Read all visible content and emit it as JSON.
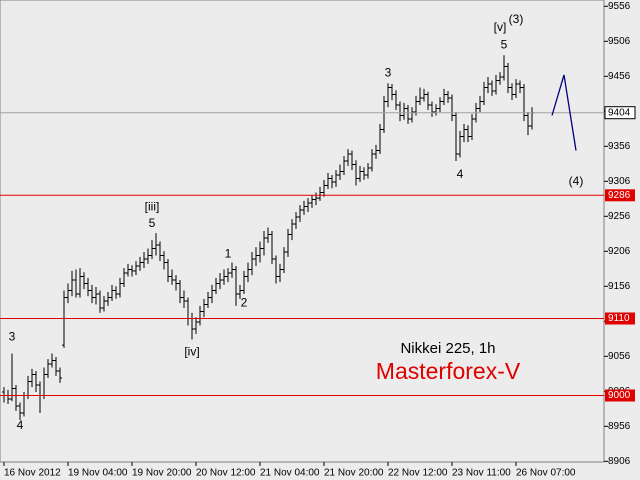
{
  "chart_data": {
    "type": "ohlc",
    "symbol": "Nikkei 225, 1h",
    "brand": "Masterforex-V",
    "bars": [
      [
        9005,
        9012,
        8990,
        9000
      ],
      [
        9000,
        9008,
        8988,
        8995
      ],
      [
        8995,
        9060,
        8992,
        9010
      ],
      [
        9010,
        9015,
        8978,
        8985
      ],
      [
        8985,
        8990,
        8965,
        8975
      ],
      [
        8975,
        9005,
        8970,
        9000
      ],
      [
        9000,
        9028,
        8995,
        9020
      ],
      [
        9020,
        9038,
        9012,
        9030
      ],
      [
        9030,
        9035,
        9005,
        9015
      ],
      [
        9015,
        9020,
        8975,
        9000
      ],
      [
        9000,
        9040,
        8995,
        9030
      ],
      [
        9030,
        9052,
        9025,
        9045
      ],
      [
        9045,
        9060,
        9040,
        9050
      ],
      [
        9050,
        9055,
        9028,
        9035
      ],
      [
        9035,
        9040,
        9018,
        9025
      ],
      [
        9072,
        9150,
        9068,
        9140
      ],
      [
        9140,
        9160,
        9132,
        9150
      ],
      [
        9150,
        9178,
        9142,
        9165
      ],
      [
        9165,
        9180,
        9140,
        9145
      ],
      [
        9145,
        9182,
        9140,
        9170
      ],
      [
        9170,
        9176,
        9152,
        9160
      ],
      [
        9160,
        9168,
        9142,
        9150
      ],
      [
        9150,
        9158,
        9132,
        9140
      ],
      [
        9140,
        9155,
        9130,
        9145
      ],
      [
        9145,
        9150,
        9118,
        9125
      ],
      [
        9125,
        9142,
        9120,
        9135
      ],
      [
        9135,
        9148,
        9128,
        9140
      ],
      [
        9140,
        9158,
        9135,
        9150
      ],
      [
        9150,
        9156,
        9138,
        9145
      ],
      [
        9145,
        9168,
        9140,
        9160
      ],
      [
        9160,
        9182,
        9155,
        9175
      ],
      [
        9175,
        9188,
        9170,
        9180
      ],
      [
        9180,
        9186,
        9170,
        9178
      ],
      [
        9178,
        9192,
        9172,
        9185
      ],
      [
        9185,
        9198,
        9178,
        9190
      ],
      [
        9190,
        9205,
        9182,
        9195
      ],
      [
        9195,
        9210,
        9188,
        9200
      ],
      [
        9200,
        9222,
        9195,
        9210
      ],
      [
        9210,
        9232,
        9200,
        9215
      ],
      [
        9215,
        9220,
        9192,
        9200
      ],
      [
        9200,
        9206,
        9180,
        9190
      ],
      [
        9190,
        9195,
        9162,
        9170
      ],
      [
        9170,
        9180,
        9158,
        9165
      ],
      [
        9165,
        9172,
        9150,
        9160
      ],
      [
        9160,
        9165,
        9132,
        9140
      ],
      [
        9140,
        9150,
        9125,
        9135
      ],
      [
        9135,
        9140,
        9100,
        9110
      ],
      [
        9110,
        9118,
        9080,
        9095
      ],
      [
        9095,
        9112,
        9088,
        9105
      ],
      [
        9105,
        9128,
        9100,
        9120
      ],
      [
        9120,
        9138,
        9112,
        9130
      ],
      [
        9130,
        9148,
        9125,
        9140
      ],
      [
        9140,
        9158,
        9132,
        9150
      ],
      [
        9150,
        9168,
        9145,
        9160
      ],
      [
        9160,
        9175,
        9152,
        9165
      ],
      [
        9165,
        9180,
        9158,
        9170
      ],
      [
        9170,
        9182,
        9162,
        9175
      ],
      [
        9175,
        9190,
        9168,
        9180
      ],
      [
        9180,
        9185,
        9128,
        9145
      ],
      [
        9145,
        9158,
        9138,
        9150
      ],
      [
        9150,
        9178,
        9145,
        9170
      ],
      [
        9170,
        9190,
        9162,
        9180
      ],
      [
        9180,
        9205,
        9172,
        9195
      ],
      [
        9195,
        9212,
        9185,
        9200
      ],
      [
        9200,
        9220,
        9190,
        9210
      ],
      [
        9210,
        9235,
        9200,
        9225
      ],
      [
        9225,
        9240,
        9218,
        9230
      ],
      [
        9230,
        9235,
        9188,
        9195
      ],
      [
        9195,
        9200,
        9160,
        9170
      ],
      [
        9170,
        9188,
        9162,
        9180
      ],
      [
        9180,
        9212,
        9175,
        9205
      ],
      [
        9205,
        9238,
        9198,
        9230
      ],
      [
        9230,
        9252,
        9222,
        9245
      ],
      [
        9245,
        9262,
        9238,
        9255
      ],
      [
        9255,
        9272,
        9248,
        9265
      ],
      [
        9265,
        9278,
        9258,
        9270
      ],
      [
        9270,
        9282,
        9262,
        9275
      ],
      [
        9275,
        9286,
        9268,
        9280
      ],
      [
        9280,
        9290,
        9272,
        9282
      ],
      [
        9282,
        9298,
        9278,
        9290
      ],
      [
        9290,
        9308,
        9284,
        9300
      ],
      [
        9300,
        9318,
        9295,
        9310
      ],
      [
        9310,
        9315,
        9296,
        9305
      ],
      [
        9305,
        9322,
        9298,
        9315
      ],
      [
        9315,
        9330,
        9308,
        9320
      ],
      [
        9320,
        9342,
        9315,
        9335
      ],
      [
        9335,
        9352,
        9328,
        9345
      ],
      [
        9345,
        9350,
        9322,
        9330
      ],
      [
        9330,
        9336,
        9300,
        9310
      ],
      [
        9310,
        9328,
        9305,
        9320
      ],
      [
        9320,
        9326,
        9308,
        9315
      ],
      [
        9315,
        9332,
        9310,
        9325
      ],
      [
        9325,
        9352,
        9320,
        9345
      ],
      [
        9345,
        9358,
        9338,
        9350
      ],
      [
        9350,
        9388,
        9345,
        9380
      ],
      [
        9380,
        9428,
        9375,
        9420
      ],
      [
        9420,
        9446,
        9412,
        9440
      ],
      [
        9440,
        9445,
        9422,
        9430
      ],
      [
        9430,
        9436,
        9408,
        9415
      ],
      [
        9415,
        9420,
        9392,
        9400
      ],
      [
        9400,
        9418,
        9394,
        9410
      ],
      [
        9410,
        9415,
        9388,
        9395
      ],
      [
        9395,
        9412,
        9390,
        9405
      ],
      [
        9405,
        9428,
        9400,
        9420
      ],
      [
        9420,
        9440,
        9415,
        9425
      ],
      [
        9425,
        9438,
        9420,
        9430
      ],
      [
        9430,
        9434,
        9408,
        9415
      ],
      [
        9415,
        9420,
        9398,
        9405
      ],
      [
        9405,
        9416,
        9400,
        9410
      ],
      [
        9410,
        9426,
        9405,
        9420
      ],
      [
        9420,
        9438,
        9415,
        9430
      ],
      [
        9430,
        9435,
        9418,
        9425
      ],
      [
        9425,
        9430,
        9392,
        9400
      ],
      [
        9400,
        9405,
        9335,
        9345
      ],
      [
        9345,
        9378,
        9340,
        9370
      ],
      [
        9370,
        9388,
        9362,
        9380
      ],
      [
        9380,
        9386,
        9362,
        9370
      ],
      [
        9370,
        9402,
        9365,
        9395
      ],
      [
        9395,
        9418,
        9390,
        9410
      ],
      [
        9410,
        9428,
        9405,
        9420
      ],
      [
        9420,
        9448,
        9415,
        9440
      ],
      [
        9440,
        9455,
        9432,
        9445
      ],
      [
        9445,
        9450,
        9428,
        9435
      ],
      [
        9435,
        9458,
        9430,
        9450
      ],
      [
        9450,
        9462,
        9444,
        9455
      ],
      [
        9455,
        9486,
        9450,
        9470
      ],
      [
        9470,
        9475,
        9432,
        9440
      ],
      [
        9440,
        9446,
        9422,
        9430
      ],
      [
        9430,
        9452,
        9425,
        9445
      ],
      [
        9445,
        9450,
        9432,
        9440
      ],
      [
        9440,
        9445,
        9392,
        9400
      ],
      [
        9400,
        9405,
        9372,
        9385
      ],
      [
        9385,
        9412,
        9380,
        9404
      ]
    ],
    "bar_color": "#000000",
    "xlim": [
      -1,
      150
    ],
    "xticks": [
      {
        "value": 0,
        "label": "16 Nov 2012"
      },
      {
        "value": 16,
        "label": "19 Nov 04:00"
      },
      {
        "value": 32,
        "label": "19 Nov 20:00"
      },
      {
        "value": 48,
        "label": "20 Nov 12:00"
      },
      {
        "value": 64,
        "label": "21 Nov 04:00"
      },
      {
        "value": 80,
        "label": "21 Nov 20:00"
      },
      {
        "value": 96,
        "label": "22 Nov 12:00"
      },
      {
        "value": 112,
        "label": "23 Nov 11:00"
      },
      {
        "value": 128,
        "label": "26 Nov 07:00"
      }
    ],
    "ylim": [
      8905,
      9565
    ],
    "yticks": [
      9556,
      9506,
      9456,
      9406,
      9356,
      9306,
      9256,
      9206,
      9156,
      9106,
      9056,
      9006,
      8956,
      8906
    ],
    "levels": [
      9286,
      9110,
      9000
    ],
    "level_color": "#e00000",
    "last_price_color": "#a0a0a0",
    "forecast": {
      "x": [
        137,
        140,
        143
      ],
      "values": [
        9400,
        9458,
        9350
      ],
      "color": "#000080"
    },
    "annotations": [
      {
        "text": "3",
        "bar": 2,
        "price": 9083
      },
      {
        "text": "4",
        "bar": 4,
        "price": 8957
      },
      {
        "text": "[iii]",
        "bar": 37,
        "price": 9269
      },
      {
        "text": "5",
        "bar": 37,
        "price": 9245
      },
      {
        "text": "[iv]",
        "bar": 47,
        "price": 9062
      },
      {
        "text": "1",
        "bar": 56,
        "price": 9202
      },
      {
        "text": "2",
        "bar": 60,
        "price": 9132
      },
      {
        "text": "3",
        "bar": 96,
        "price": 9460
      },
      {
        "text": "4",
        "bar": 114,
        "price": 9315
      },
      {
        "text": "[v]",
        "bar": 124,
        "price": 9525
      },
      {
        "text": "5",
        "bar": 125,
        "price": 9500
      },
      {
        "text": "(3)",
        "bar": 128,
        "price": 9537
      },
      {
        "text": "(4)",
        "bar": 143,
        "price": 9305
      }
    ]
  }
}
